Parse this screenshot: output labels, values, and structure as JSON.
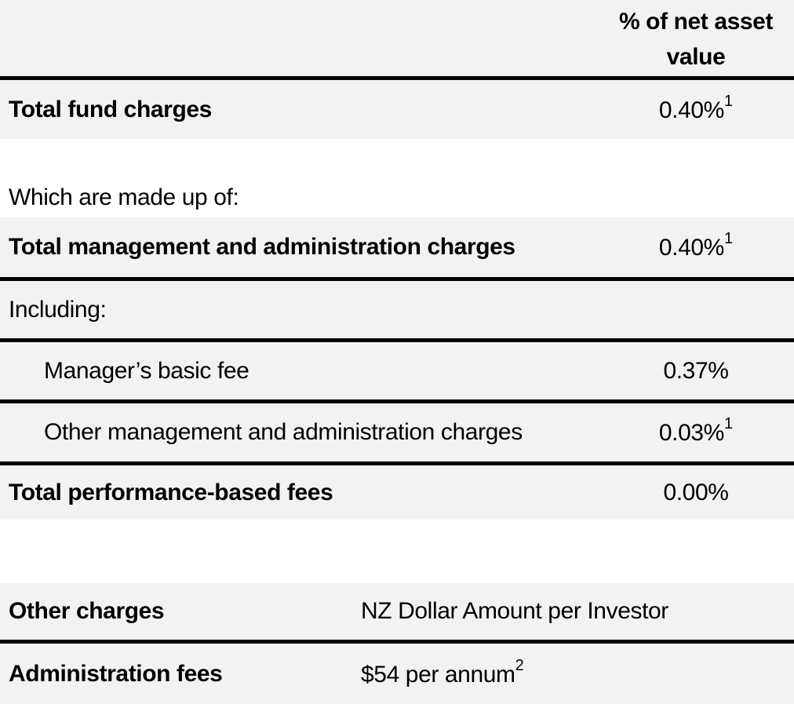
{
  "fees_table": {
    "value_column_header": [
      "% of net asset",
      "value"
    ],
    "section_intro": "Which are made up of:",
    "rows": [
      {
        "label": "Total fund charges",
        "value": "0.40%",
        "sup": "1"
      },
      {
        "label": "Total management and administration charges",
        "value": "0.40%",
        "sup": "1"
      },
      {
        "label": "Including:",
        "value": ""
      },
      {
        "label": "Manager’s basic fee",
        "value": "0.37%"
      },
      {
        "label": "Other management and administration charges",
        "value": "0.03%",
        "sup": "1"
      },
      {
        "label": "Total performance-based fees",
        "value": "0.00%"
      }
    ]
  },
  "other_charges_table": {
    "header": {
      "label": "Other charges",
      "value_column": "NZ Dollar Amount per Investor"
    },
    "rows": [
      {
        "label": "Administration fees",
        "value": "$54 per annum",
        "sup": "2"
      }
    ]
  },
  "colors": {
    "row_background": "#f2f2f2",
    "rule": "#000000",
    "text": "#000000"
  }
}
